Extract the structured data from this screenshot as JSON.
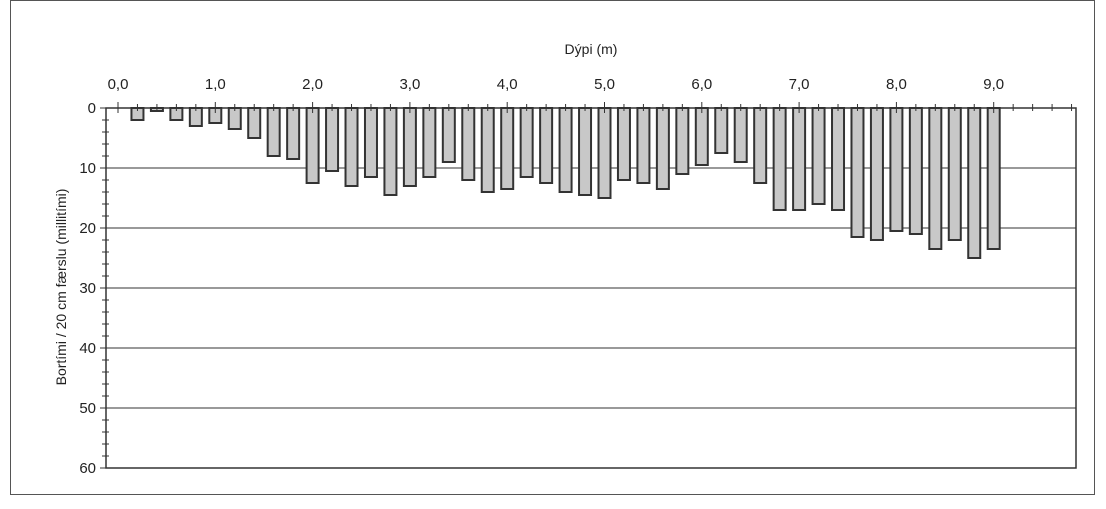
{
  "chart_data": {
    "type": "bar",
    "title": "",
    "xlabel": "Dýpi (m)",
    "ylabel": "Bortími / 20 cm færslu (millitími)",
    "xlim": [
      0,
      10
    ],
    "ylim": [
      0,
      60
    ],
    "x_axis_position": "top",
    "y_axis_inverted": true,
    "grid": "horizontal",
    "bar_color": "#c8c8c8",
    "bar_edge_color": "#333333",
    "x_ticks": [
      {
        "v": 0,
        "label": "0,0"
      },
      {
        "v": 1,
        "label": "1,0"
      },
      {
        "v": 2,
        "label": "2,0"
      },
      {
        "v": 3,
        "label": "3,0"
      },
      {
        "v": 4,
        "label": "4,0"
      },
      {
        "v": 5,
        "label": "5,0"
      },
      {
        "v": 6,
        "label": "6,0"
      },
      {
        "v": 7,
        "label": "7,0"
      },
      {
        "v": 8,
        "label": "8,0"
      },
      {
        "v": 9,
        "label": "9,0"
      }
    ],
    "y_ticks": [
      {
        "v": 0,
        "label": "0"
      },
      {
        "v": 10,
        "label": "10"
      },
      {
        "v": 20,
        "label": "20"
      },
      {
        "v": 30,
        "label": "30"
      },
      {
        "v": 40,
        "label": "40"
      },
      {
        "v": 50,
        "label": "50"
      },
      {
        "v": 60,
        "label": "60"
      }
    ],
    "x": [
      0.2,
      0.4,
      0.6,
      0.8,
      1.0,
      1.2,
      1.4,
      1.6,
      1.8,
      2.0,
      2.2,
      2.4,
      2.6,
      2.8,
      3.0,
      3.2,
      3.4,
      3.6,
      3.8,
      4.0,
      4.2,
      4.4,
      4.6,
      4.8,
      5.0,
      5.2,
      5.4,
      5.6,
      5.8,
      6.0,
      6.2,
      6.4,
      6.6,
      6.8,
      7.0,
      7.2,
      7.4,
      7.6,
      7.8,
      8.0,
      8.2,
      8.4,
      8.6,
      8.8,
      9.0
    ],
    "values": [
      2,
      0.5,
      2,
      3,
      2.5,
      3.5,
      5,
      8,
      8.5,
      12.5,
      10.5,
      13,
      11.5,
      14.5,
      13,
      11.5,
      9,
      12,
      14,
      13.5,
      11.5,
      12.5,
      14,
      14.5,
      15,
      12,
      12.5,
      13.5,
      11,
      9.5,
      7.5,
      9,
      12.5,
      17,
      17,
      16,
      17,
      21.5,
      22,
      20.5,
      21,
      23.5,
      22,
      25,
      23.5
    ]
  }
}
